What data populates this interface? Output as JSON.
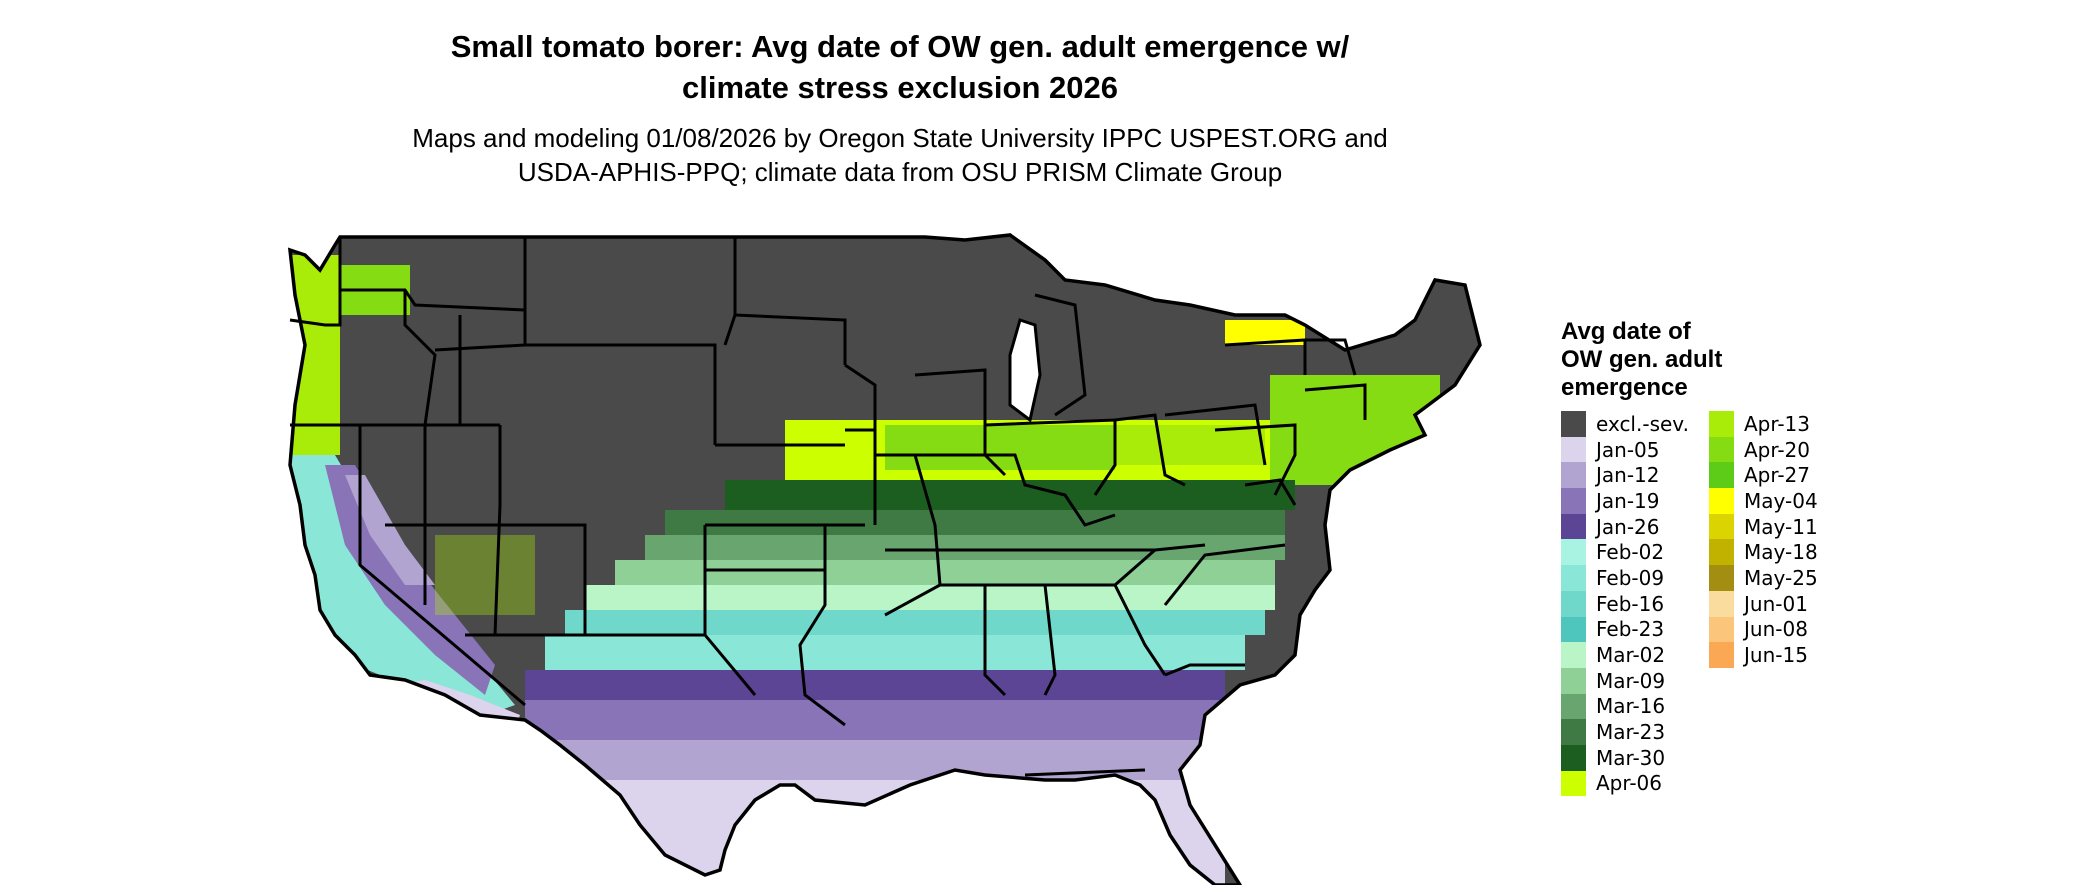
{
  "title": "Small tomato borer: Avg date of OW gen. adult emergence w/",
  "title_line2": "climate stress exclusion 2026",
  "subtitle": "Maps and modeling 01/08/2026 by Oregon State University IPPC USPEST.ORG and",
  "subtitle_line2": "USDA-APHIS-PPQ; climate data from OSU PRISM Climate Group",
  "legend": {
    "title_lines": [
      "Avg date of",
      "OW gen. adult",
      "emergence"
    ],
    "col1": [
      {
        "label": "excl.-sev.",
        "color": "#4a4a4a"
      },
      {
        "label": "Jan-05",
        "color": "#dcd4ec"
      },
      {
        "label": "Jan-12",
        "color": "#b2a4d1"
      },
      {
        "label": "Jan-19",
        "color": "#8a74b8"
      },
      {
        "label": "Jan-26",
        "color": "#5d4596"
      },
      {
        "label": "Feb-02",
        "color": "#a9f3e3"
      },
      {
        "label": "Feb-09",
        "color": "#8ae6d6"
      },
      {
        "label": "Feb-16",
        "color": "#6fd8ca"
      },
      {
        "label": "Feb-23",
        "color": "#4ec6bd"
      },
      {
        "label": "Mar-02",
        "color": "#b9f5c6"
      },
      {
        "label": "Mar-09",
        "color": "#8fd097"
      },
      {
        "label": "Mar-16",
        "color": "#68a56f"
      },
      {
        "label": "Mar-23",
        "color": "#3f7a45"
      },
      {
        "label": "Mar-30",
        "color": "#1b5e20"
      },
      {
        "label": "Apr-06",
        "color": "#ccff00"
      }
    ],
    "col2": [
      {
        "label": "Apr-13",
        "color": "#a9ec0a"
      },
      {
        "label": "Apr-20",
        "color": "#86dc12"
      },
      {
        "label": "Apr-27",
        "color": "#5dcc18"
      },
      {
        "label": "May-04",
        "color": "#ffff00"
      },
      {
        "label": "May-11",
        "color": "#dcd400"
      },
      {
        "label": "May-18",
        "color": "#c2b200"
      },
      {
        "label": "May-25",
        "color": "#a48e12"
      },
      {
        "label": "Jun-01",
        "color": "#f9dc9e"
      },
      {
        "label": "Jun-08",
        "color": "#fcc57c"
      },
      {
        "label": "Jun-15",
        "color": "#fba855"
      }
    ]
  }
}
